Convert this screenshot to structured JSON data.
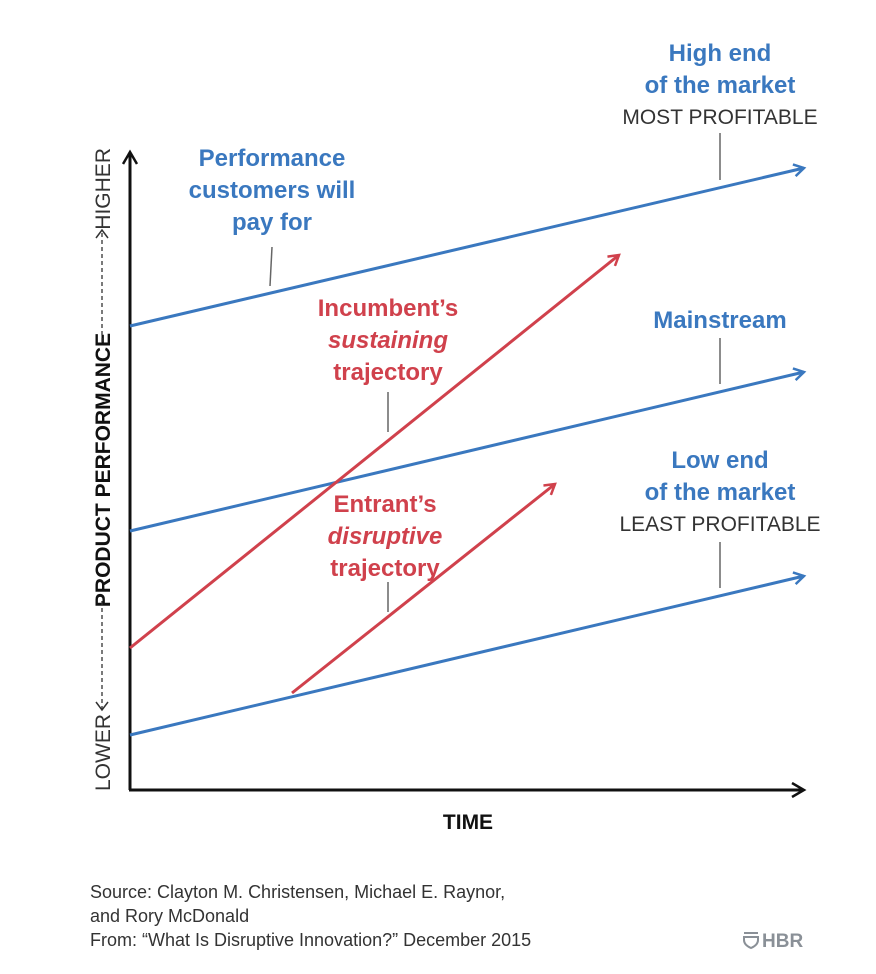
{
  "colors": {
    "market": "#3a78bf",
    "trajectory": "#d0414c",
    "axis": "#111111"
  },
  "axes": {
    "x_label": "TIME",
    "y_label": "PRODUCT PERFORMANCE",
    "y_low": "LOWER",
    "y_high": "HIGHER"
  },
  "labels": {
    "performance": [
      "Performance",
      "customers will",
      "pay for"
    ],
    "high_end": [
      "High end",
      "of the market"
    ],
    "high_end_sub": "MOST PROFITABLE",
    "mainstream": "Mainstream",
    "low_end": [
      "Low end",
      "of the market"
    ],
    "low_end_sub": "LEAST PROFITABLE",
    "incumbent": [
      "Incumbent’s",
      "sustaining",
      "trajectory"
    ],
    "entrant": [
      "Entrant’s",
      "disruptive",
      "trajectory"
    ]
  },
  "source": [
    "Source: Clayton M. Christensen, Michael E. Raynor,",
    "and Rory McDonald",
    "From: “What Is Disruptive Innovation?” December 2015"
  ],
  "logo": "HBR"
}
